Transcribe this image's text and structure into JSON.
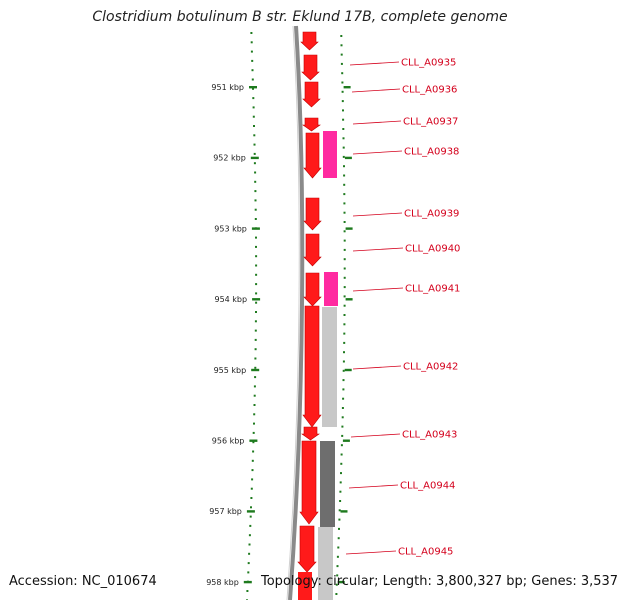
{
  "title": "Clostridium botulinum B str. Eklund 17B, complete genome",
  "footer": {
    "accession": "Accession: NC_010674",
    "topology": "Topology: circular; Length: 3,800,327 bp; Genes: 3,537"
  },
  "colors": {
    "gene": "#ff1a1a",
    "gene_highlight": "#ff2aa0",
    "label": "#d4001c",
    "tick": "#1e7a1e",
    "backbone": "#8a8a8a",
    "gc_light": "#c8c8c8",
    "gc_dark": "#6e6e6e"
  },
  "scale": {
    "labels": [
      "951 kbp",
      "952 kbp",
      "953 kbp",
      "954 kbp",
      "955 kbp",
      "956 kbp",
      "957 kbp",
      "958 kbp"
    ],
    "kbp": [
      951,
      952,
      953,
      954,
      955,
      956,
      957,
      958
    ]
  },
  "genes": [
    {
      "name": "CLL_A0935"
    },
    {
      "name": "CLL_A0936"
    },
    {
      "name": "CLL_A0937"
    },
    {
      "name": "CLL_A0938"
    },
    {
      "name": "CLL_A0939"
    },
    {
      "name": "CLL_A0940"
    },
    {
      "name": "CLL_A0941"
    },
    {
      "name": "CLL_A0942"
    },
    {
      "name": "CLL_A0943"
    },
    {
      "name": "CLL_A0944"
    },
    {
      "name": "CLL_A0945"
    }
  ]
}
